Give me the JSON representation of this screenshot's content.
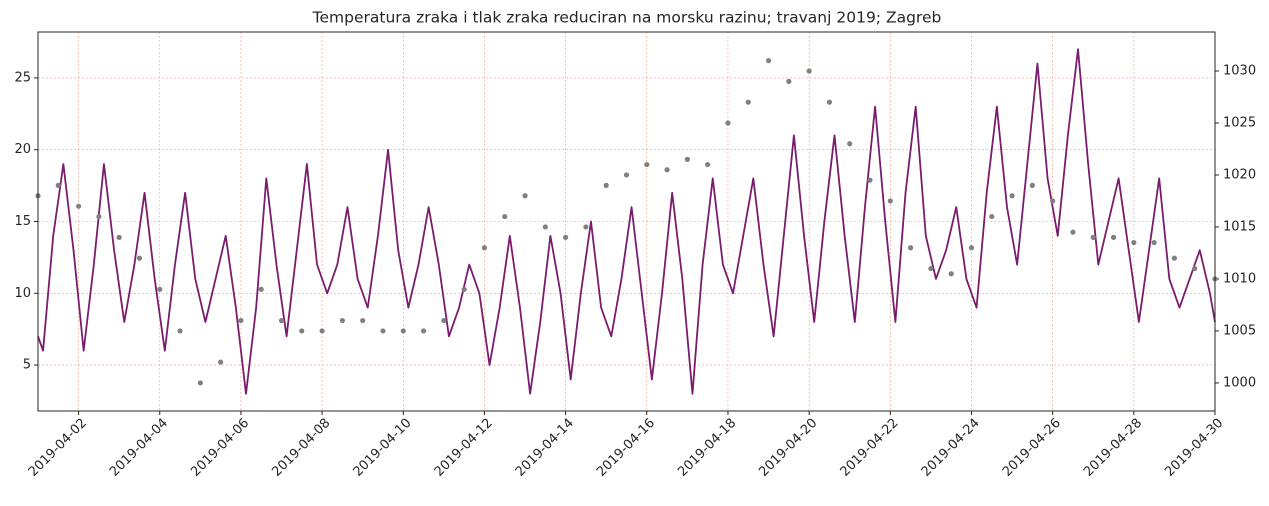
{
  "chart_data": {
    "type": "line",
    "title": "Temperatura zraka i tlak zraka reduciran na morsku razinu; travanj 2019; Zagreb",
    "xlim": [
      1,
      30
    ],
    "xticks": [
      {
        "value": 2,
        "label": "2019-04-02"
      },
      {
        "value": 4,
        "label": "2019-04-04"
      },
      {
        "value": 6,
        "label": "2019-04-06"
      },
      {
        "value": 8,
        "label": "2019-04-08"
      },
      {
        "value": 10,
        "label": "2019-04-10"
      },
      {
        "value": 12,
        "label": "2019-04-12"
      },
      {
        "value": 14,
        "label": "2019-04-14"
      },
      {
        "value": 16,
        "label": "2019-04-16"
      },
      {
        "value": 18,
        "label": "2019-04-18"
      },
      {
        "value": 20,
        "label": "2019-04-20"
      },
      {
        "value": 22,
        "label": "2019-04-22"
      },
      {
        "value": 24,
        "label": "2019-04-24"
      },
      {
        "value": 26,
        "label": "2019-04-26"
      },
      {
        "value": 28,
        "label": "2019-04-28"
      },
      {
        "value": 30,
        "label": "2019-04-30"
      }
    ],
    "ylim": [
      1.8,
      28.2
    ],
    "yticks": [
      5,
      10,
      15,
      20,
      25
    ],
    "y2lim": [
      997.3,
      1033.75
    ],
    "y2ticks": [
      1000,
      1005,
      1010,
      1015,
      1020,
      1025,
      1030
    ],
    "grid": true,
    "grid_color": "#f0a080",
    "series": [
      {
        "kind": "line",
        "color": "#7a1c6e",
        "axis": "y",
        "x": [
          1,
          1.125,
          1.375,
          1.625,
          1.875,
          2.125,
          2.375,
          2.625,
          2.875,
          3.125,
          3.375,
          3.625,
          3.875,
          4.125,
          4.375,
          4.625,
          4.875,
          5.125,
          5.375,
          5.625,
          5.875,
          6.125,
          6.375,
          6.625,
          6.875,
          7.125,
          7.375,
          7.625,
          7.875,
          8.125,
          8.375,
          8.625,
          8.875,
          9.125,
          9.375,
          9.625,
          9.875,
          10.125,
          10.375,
          10.625,
          10.875,
          11.125,
          11.375,
          11.625,
          11.875,
          12.125,
          12.375,
          12.625,
          12.875,
          13.125,
          13.375,
          13.625,
          13.875,
          14.125,
          14.375,
          14.625,
          14.875,
          15.125,
          15.375,
          15.625,
          15.875,
          16.125,
          16.375,
          16.625,
          16.875,
          17.125,
          17.375,
          17.625,
          17.875,
          18.125,
          18.375,
          18.625,
          18.875,
          19.125,
          19.375,
          19.625,
          19.875,
          20.125,
          20.375,
          20.625,
          20.875,
          21.125,
          21.375,
          21.625,
          21.875,
          22.125,
          22.375,
          22.625,
          22.875,
          23.125,
          23.375,
          23.625,
          23.875,
          24.125,
          24.375,
          24.625,
          24.875,
          25.125,
          25.375,
          25.625,
          25.875,
          26.125,
          26.375,
          26.625,
          26.875,
          27.125,
          27.375,
          27.625,
          27.875,
          28.125,
          28.375,
          28.625,
          28.875,
          29.125,
          29.375,
          29.625,
          29.875,
          30
        ],
        "values": [
          7,
          6,
          14,
          19,
          13,
          6,
          12,
          19,
          13,
          8,
          12,
          17,
          11,
          6,
          12,
          17,
          11,
          8,
          11,
          14,
          9,
          3,
          9,
          18,
          12,
          7,
          13,
          19,
          12,
          10,
          12,
          16,
          11,
          9,
          14,
          20,
          13,
          9,
          12,
          16,
          12,
          7,
          9,
          12,
          10,
          5,
          9,
          14,
          9,
          3,
          8,
          14,
          10,
          4,
          10,
          15,
          9,
          7,
          11,
          16,
          10,
          4,
          10,
          17,
          11,
          3,
          12,
          18,
          12,
          10,
          14,
          18,
          12,
          7,
          14,
          21,
          14,
          8,
          15,
          21,
          14,
          8,
          16,
          23,
          15,
          8,
          17,
          23,
          14,
          11,
          13,
          16,
          11,
          9,
          17,
          23,
          16,
          12,
          19,
          26,
          18,
          14,
          21,
          27,
          19,
          12,
          15,
          18,
          13,
          8,
          13,
          18,
          11,
          9,
          11,
          13,
          10,
          8
        ]
      },
      {
        "kind": "dots",
        "color": "#808080",
        "axis": "y2",
        "x": [
          1,
          1.5,
          2,
          2.5,
          3,
          3.5,
          4,
          4.5,
          5,
          5.5,
          6,
          6.5,
          7,
          7.5,
          8,
          8.5,
          9,
          9.5,
          10,
          10.5,
          11,
          11.5,
          12,
          12.5,
          13,
          13.5,
          14,
          14.5,
          15,
          15.5,
          16,
          16.5,
          17,
          17.5,
          18,
          18.5,
          19,
          19.5,
          20,
          20.5,
          21,
          21.5,
          22,
          22.5,
          23,
          23.5,
          24,
          24.5,
          25,
          25.5,
          26,
          26.5,
          27,
          27.5,
          28,
          28.5,
          29,
          29.5,
          30
        ],
        "values": [
          1018,
          1019,
          1017,
          1016,
          1014,
          1012,
          1009,
          1005,
          1000,
          1002,
          1006,
          1009,
          1006,
          1005,
          1005,
          1006,
          1006,
          1005,
          1005,
          1005,
          1006,
          1009,
          1013,
          1016,
          1018,
          1015,
          1014,
          1015,
          1019,
          1020,
          1021,
          1020.5,
          1021.5,
          1021,
          1025,
          1027,
          1031,
          1029,
          1030,
          1027,
          1023,
          1019.5,
          1017.5,
          1013,
          1011,
          1010.5,
          1013,
          1016,
          1018,
          1019,
          1017.5,
          1014.5,
          1014,
          1014,
          1013.5,
          1013.5,
          1012,
          1011,
          1010
        ]
      }
    ]
  }
}
